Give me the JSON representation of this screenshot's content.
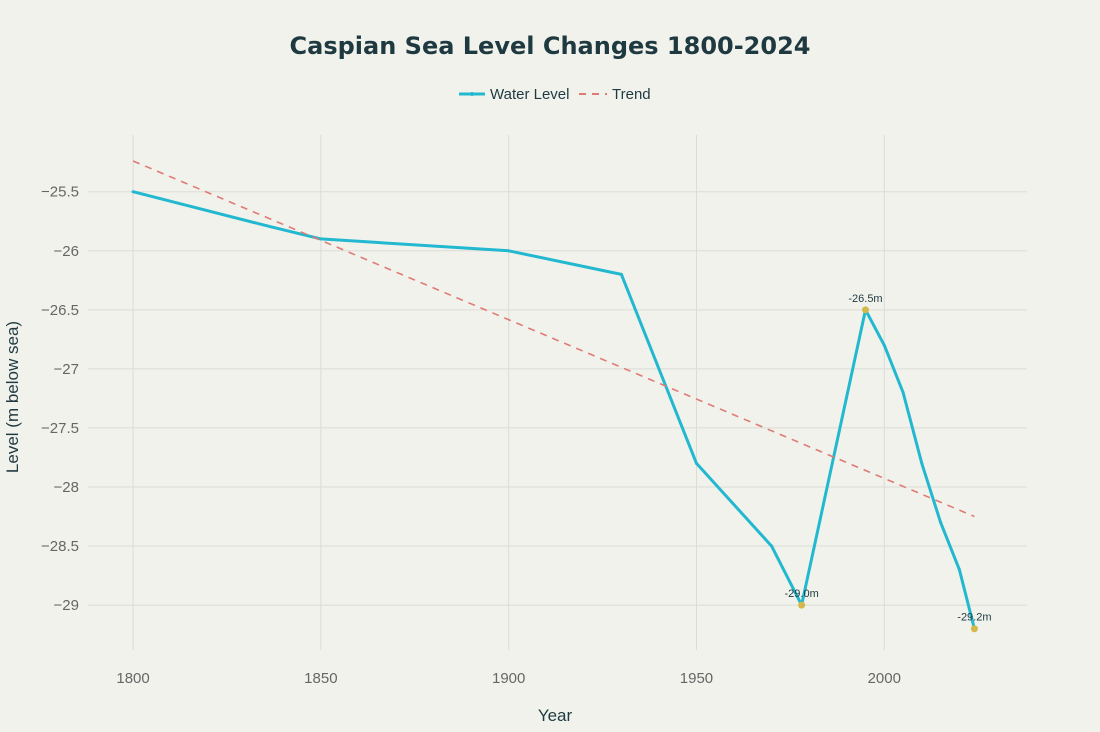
{
  "chart_data": {
    "type": "line",
    "title": "Caspian Sea Level Changes 1800-2024",
    "xlabel": "Year",
    "ylabel": "Level (m below sea)",
    "xlim": [
      1788,
      2038
    ],
    "ylim": [
      -29.38,
      -25.02
    ],
    "grid": true,
    "legend_position": "top-center",
    "x_ticks": [
      1800,
      1850,
      1900,
      1950,
      2000
    ],
    "y_ticks": [
      -25.5,
      -26,
      -26.5,
      -27,
      -27.5,
      -28,
      -28.5,
      -29
    ],
    "y_tick_labels": [
      "−25.5",
      "−26",
      "−26.5",
      "−27",
      "−27.5",
      "−28",
      "−28.5",
      "−29"
    ],
    "series": [
      {
        "name": "Water Level",
        "style": "solid",
        "color": "#22b8cf",
        "x": [
          1800,
          1837,
          1850,
          1900,
          1930,
          1950,
          1970,
          1978,
          1995,
          2000,
          2005,
          2010,
          2015,
          2020,
          2024
        ],
        "values": [
          -25.5,
          -25.8,
          -25.9,
          -26.0,
          -26.2,
          -27.8,
          -28.5,
          -29.0,
          -26.5,
          -26.8,
          -27.2,
          -27.8,
          -28.3,
          -28.7,
          -29.2
        ]
      },
      {
        "name": "Trend",
        "style": "dashed",
        "color": "#e07b74",
        "x": [
          1800,
          2024
        ],
        "values": [
          -25.24,
          -28.25
        ]
      }
    ],
    "annotations": [
      {
        "x": 1978,
        "y": -29.0,
        "text": "-29.0m"
      },
      {
        "x": 1995,
        "y": -26.5,
        "text": "-26.5m"
      },
      {
        "x": 2024,
        "y": -29.2,
        "text": "-29.2m"
      }
    ],
    "marker_color": "#d4b84a"
  }
}
